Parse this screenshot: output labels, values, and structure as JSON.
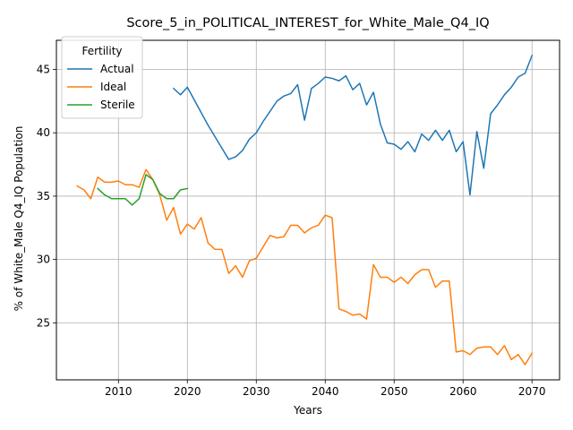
{
  "chart_data": {
    "type": "line",
    "title": "Score_5_in_POLITICAL_INTEREST_for_White_Male_Q4_IQ",
    "xlabel": "Years",
    "ylabel": "% of White_Male Q4_IQ Population",
    "xlim": [
      2001,
      2074
    ],
    "ylim": [
      20.5,
      47.3
    ],
    "xticks": [
      2010,
      2020,
      2030,
      2040,
      2050,
      2060,
      2070
    ],
    "yticks": [
      25,
      30,
      35,
      40,
      45
    ],
    "grid": true,
    "legend": {
      "title": "Fertility",
      "placement": "top-left"
    },
    "series": [
      {
        "name": "Actual",
        "color": "#1f77b4",
        "x": [
          2018,
          2019,
          2020,
          2021,
          2022,
          2023,
          2024,
          2025,
          2026,
          2027,
          2028,
          2029,
          2030,
          2031,
          2032,
          2033,
          2034,
          2035,
          2036,
          2037,
          2038,
          2039,
          2040,
          2041,
          2042,
          2043,
          2044,
          2045,
          2046,
          2047,
          2048,
          2049,
          2050,
          2051,
          2052,
          2053,
          2054,
          2055,
          2056,
          2057,
          2058,
          2059,
          2060,
          2061,
          2062,
          2063,
          2064,
          2065,
          2066,
          2067,
          2068,
          2069,
          2070
        ],
        "y": [
          43.5,
          43.0,
          43.6,
          42.6,
          41.6,
          40.6,
          39.7,
          38.8,
          37.9,
          38.1,
          38.6,
          39.5,
          40.0,
          40.9,
          41.7,
          42.5,
          42.9,
          43.1,
          43.8,
          41.0,
          43.5,
          43.9,
          44.4,
          44.3,
          44.1,
          44.5,
          43.4,
          43.9,
          42.2,
          43.2,
          40.7,
          39.2,
          39.1,
          38.7,
          39.3,
          38.5,
          39.9,
          39.4,
          40.2,
          39.4,
          40.2,
          38.5,
          39.3,
          35.1,
          40.1,
          37.2,
          41.5,
          42.2,
          43.0,
          43.6,
          44.4,
          44.7,
          46.1
        ]
      },
      {
        "name": "Ideal",
        "color": "#ff7f0e",
        "x": [
          2004,
          2005,
          2006,
          2007,
          2008,
          2009,
          2010,
          2011,
          2012,
          2013,
          2014,
          2015,
          2016,
          2017,
          2018,
          2019,
          2020,
          2021,
          2022,
          2023,
          2024,
          2025,
          2026,
          2027,
          2028,
          2029,
          2030,
          2031,
          2032,
          2033,
          2034,
          2035,
          2036,
          2037,
          2038,
          2039,
          2040,
          2041,
          2042,
          2043,
          2044,
          2045,
          2046,
          2047,
          2048,
          2049,
          2050,
          2051,
          2052,
          2053,
          2054,
          2055,
          2056,
          2057,
          2058,
          2059,
          2060,
          2061,
          2062,
          2063,
          2064,
          2065,
          2066,
          2067,
          2068,
          2069,
          2070
        ],
        "y": [
          35.8,
          35.5,
          34.8,
          36.5,
          36.1,
          36.1,
          36.2,
          35.9,
          35.9,
          35.7,
          37.1,
          36.3,
          35.1,
          33.1,
          34.1,
          32.0,
          32.8,
          32.4,
          33.3,
          31.3,
          30.8,
          30.8,
          28.9,
          29.5,
          28.6,
          29.9,
          30.1,
          31.0,
          31.9,
          31.7,
          31.8,
          32.7,
          32.7,
          32.1,
          32.5,
          32.7,
          33.5,
          33.3,
          26.1,
          25.9,
          25.6,
          25.7,
          25.3,
          29.6,
          28.6,
          28.6,
          28.2,
          28.6,
          28.1,
          28.8,
          29.2,
          29.2,
          27.8,
          28.3,
          28.3,
          22.7,
          22.8,
          22.5,
          23.0,
          23.1,
          23.1,
          22.5,
          23.2,
          22.1,
          22.5,
          21.7,
          22.6
        ]
      },
      {
        "name": "Sterile",
        "color": "#2ca02c",
        "x": [
          2007,
          2008,
          2009,
          2010,
          2011,
          2012,
          2013,
          2014,
          2015,
          2016,
          2017,
          2018,
          2019,
          2020
        ],
        "y": [
          35.6,
          35.1,
          34.8,
          34.8,
          34.8,
          34.3,
          34.8,
          36.7,
          36.3,
          35.2,
          34.8,
          34.8,
          35.5,
          35.6
        ]
      }
    ]
  }
}
